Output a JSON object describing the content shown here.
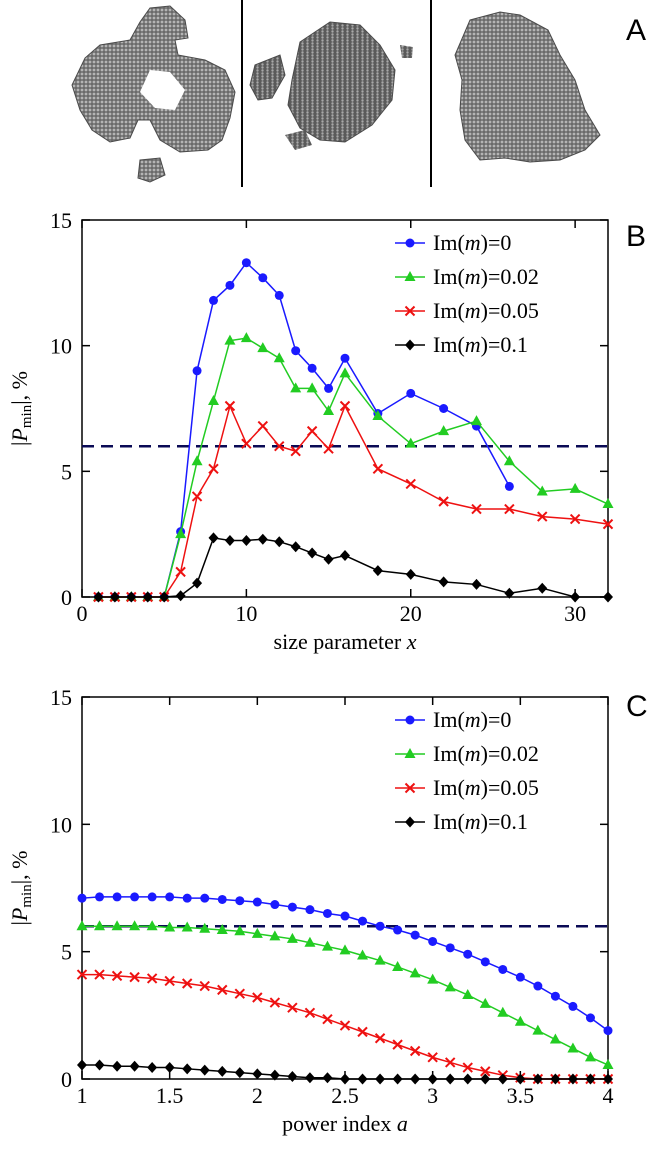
{
  "panels": {
    "a_label": "A",
    "b_label": "B",
    "c_label": "C"
  },
  "colors": {
    "blue": "#1a1aff",
    "green": "#22cc22",
    "red": "#ee1111",
    "black": "#000000",
    "dashed": "#0a0a55"
  },
  "chart_data": [
    {
      "type": "line",
      "xlabel": "size parameter x",
      "ylabel": "|P_min|, %",
      "xlim": [
        0,
        32
      ],
      "ylim": [
        0,
        15
      ],
      "xticks": [
        0,
        10,
        20,
        30
      ],
      "yticks": [
        0,
        5,
        10,
        15
      ],
      "reference_line": 6,
      "legend_position": "top-right",
      "series": [
        {
          "name": "Im(m)=0",
          "marker": "circle",
          "color": "#1a1aff",
          "x": [
            1,
            2,
            3,
            4,
            5,
            6,
            7,
            8,
            9,
            10,
            11,
            12,
            13,
            14,
            15,
            16,
            18,
            20,
            22,
            24,
            26
          ],
          "y": [
            0,
            0,
            0,
            0,
            0,
            2.6,
            9.0,
            11.8,
            12.4,
            13.3,
            12.7,
            12.0,
            9.8,
            9.1,
            8.3,
            9.5,
            7.3,
            8.1,
            7.5,
            6.8,
            4.4
          ]
        },
        {
          "name": "Im(m)=0.02",
          "marker": "triangle",
          "color": "#22cc22",
          "x": [
            1,
            2,
            3,
            4,
            5,
            6,
            7,
            8,
            9,
            10,
            11,
            12,
            13,
            14,
            15,
            16,
            18,
            20,
            22,
            24,
            26,
            28,
            30,
            32
          ],
          "y": [
            0,
            0,
            0,
            0,
            0,
            2.5,
            5.4,
            7.8,
            10.2,
            10.3,
            9.9,
            9.5,
            8.3,
            8.3,
            7.4,
            8.9,
            7.2,
            6.1,
            6.6,
            7.0,
            5.4,
            4.2,
            4.3,
            3.7
          ]
        },
        {
          "name": "Im(m)=0.05",
          "marker": "cross",
          "color": "#ee1111",
          "x": [
            1,
            2,
            3,
            4,
            5,
            6,
            7,
            8,
            9,
            10,
            11,
            12,
            13,
            14,
            15,
            16,
            18,
            20,
            22,
            24,
            26,
            28,
            30,
            32
          ],
          "y": [
            0,
            0,
            0,
            0,
            0,
            1.0,
            4.0,
            5.1,
            7.6,
            6.1,
            6.8,
            6.0,
            5.8,
            6.6,
            5.9,
            7.6,
            5.1,
            4.5,
            3.8,
            3.5,
            3.5,
            3.2,
            3.1,
            2.9
          ]
        },
        {
          "name": "Im(m)=0.1",
          "marker": "diamond",
          "color": "#000000",
          "x": [
            1,
            2,
            3,
            4,
            5,
            6,
            7,
            8,
            9,
            10,
            11,
            12,
            13,
            14,
            15,
            16,
            18,
            20,
            22,
            24,
            26,
            28,
            30,
            32
          ],
          "y": [
            0,
            0,
            0,
            0,
            0,
            0.05,
            0.55,
            2.35,
            2.25,
            2.25,
            2.3,
            2.2,
            2.0,
            1.75,
            1.5,
            1.65,
            1.05,
            0.9,
            0.6,
            0.5,
            0.15,
            0.35,
            0.0,
            0.0
          ]
        }
      ]
    },
    {
      "type": "line",
      "xlabel": "power index a",
      "ylabel": "|P_min|, %",
      "xlim": [
        1,
        4
      ],
      "ylim": [
        0,
        15
      ],
      "xticks": [
        1,
        1.5,
        2,
        2.5,
        3,
        3.5,
        4
      ],
      "yticks": [
        0,
        5,
        10,
        15
      ],
      "reference_line": 6,
      "legend_position": "top-right",
      "x": [
        1.0,
        1.1,
        1.2,
        1.3,
        1.4,
        1.5,
        1.6,
        1.7,
        1.8,
        1.9,
        2.0,
        2.1,
        2.2,
        2.3,
        2.4,
        2.5,
        2.6,
        2.7,
        2.8,
        2.9,
        3.0,
        3.1,
        3.2,
        3.3,
        3.4,
        3.5,
        3.6,
        3.7,
        3.8,
        3.9,
        4.0
      ],
      "series": [
        {
          "name": "Im(m)=0",
          "marker": "circle",
          "color": "#1a1aff",
          "values": [
            7.1,
            7.15,
            7.15,
            7.15,
            7.15,
            7.15,
            7.1,
            7.1,
            7.05,
            7.0,
            6.95,
            6.85,
            6.75,
            6.65,
            6.5,
            6.4,
            6.2,
            6.0,
            5.85,
            5.65,
            5.4,
            5.15,
            4.9,
            4.6,
            4.3,
            4.0,
            3.65,
            3.25,
            2.85,
            2.4,
            1.9
          ]
        },
        {
          "name": "Im(m)=0.02",
          "marker": "triangle",
          "color": "#22cc22",
          "values": [
            6.0,
            6.0,
            6.0,
            6.0,
            6.0,
            5.95,
            5.95,
            5.9,
            5.85,
            5.8,
            5.7,
            5.6,
            5.5,
            5.35,
            5.2,
            5.05,
            4.85,
            4.65,
            4.4,
            4.15,
            3.9,
            3.6,
            3.3,
            2.95,
            2.6,
            2.25,
            1.9,
            1.55,
            1.2,
            0.85,
            0.55
          ]
        },
        {
          "name": "Im(m)=0.05",
          "marker": "cross",
          "color": "#ee1111",
          "values": [
            4.1,
            4.1,
            4.05,
            4.0,
            3.95,
            3.85,
            3.75,
            3.65,
            3.5,
            3.35,
            3.2,
            3.0,
            2.8,
            2.6,
            2.35,
            2.1,
            1.85,
            1.6,
            1.35,
            1.1,
            0.85,
            0.65,
            0.45,
            0.3,
            0.15,
            0.05,
            0.0,
            0.0,
            0.0,
            0.0,
            0.0
          ]
        },
        {
          "name": "Im(m)=0.1",
          "marker": "diamond",
          "color": "#000000",
          "values": [
            0.55,
            0.55,
            0.5,
            0.5,
            0.45,
            0.45,
            0.4,
            0.35,
            0.3,
            0.25,
            0.2,
            0.15,
            0.1,
            0.05,
            0.05,
            0.0,
            0.0,
            0.0,
            0.0,
            0.0,
            0.0,
            0.0,
            0.0,
            0.0,
            0.0,
            0.0,
            0.0,
            0.0,
            0.0,
            0.0,
            0.0
          ]
        }
      ]
    }
  ]
}
